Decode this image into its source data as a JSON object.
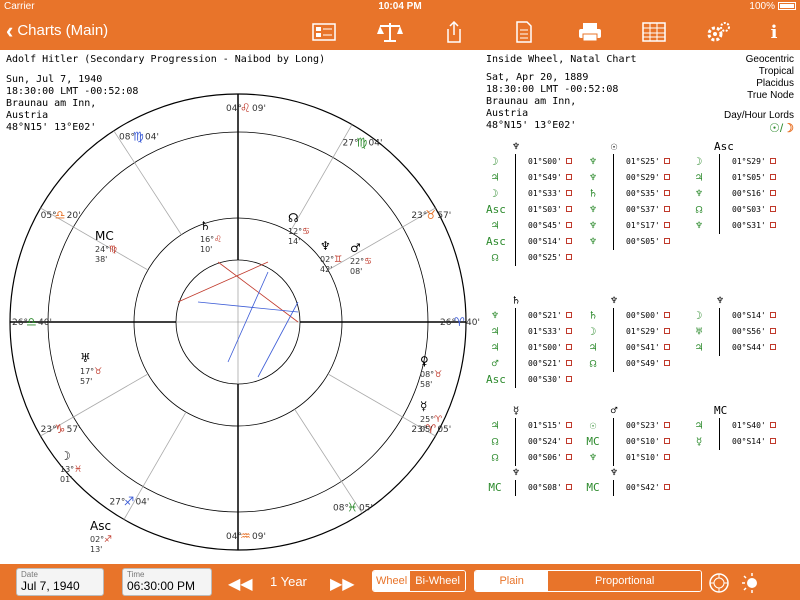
{
  "status": {
    "carrier": "Carrier",
    "time": "10:04 PM",
    "battery": "100%"
  },
  "nav": {
    "back_label": "Charts (Main)"
  },
  "left_chart": {
    "title": "Adolf Hitler (Secondary Progression - Naibod by Long)",
    "date": "Sun, Jul 7, 1940",
    "time": "18:30:00 LMT -00:52:08",
    "city": "Braunau am Inn,",
    "country": "Austria",
    "coords": "48°N15' 13°E02'"
  },
  "right_chart": {
    "title": "Inside Wheel, Natal Chart",
    "date": "Sat, Apr 20, 1889",
    "time": "18:30:00 LMT -00:52:08",
    "city": "Braunau am Inn,",
    "country": "Austria",
    "coords": "48°N15' 13°E02'"
  },
  "settings": {
    "zodiac_ref": "Geocentric",
    "zodiac": "Tropical",
    "houses": "Placidus",
    "node": "True Node"
  },
  "day_hour": {
    "label": "Day/Hour Lords"
  },
  "house_cusps": [
    {
      "deg": "04°",
      "min": "09'",
      "sign": "♌"
    },
    {
      "deg": "27°",
      "min": "04'",
      "sign": "♍"
    },
    {
      "deg": "23°",
      "min": "57'",
      "sign": "♉"
    },
    {
      "deg": "26°",
      "min": "40'",
      "sign": "♈"
    },
    {
      "deg": "23°",
      "min": "05'",
      "sign": "♈"
    },
    {
      "deg": "08°",
      "min": "05'",
      "sign": "♓"
    },
    {
      "deg": "04°",
      "min": "09'",
      "sign": "♒"
    },
    {
      "deg": "27°",
      "min": "04'",
      "sign": "♐"
    },
    {
      "deg": "23°",
      "min": "57'",
      "sign": "♑"
    },
    {
      "deg": "26°",
      "min": "40'",
      "sign": "♎"
    },
    {
      "deg": "05°",
      "min": "20'",
      "sign": "♎"
    },
    {
      "deg": "08°",
      "min": "04'",
      "sign": "♍"
    }
  ],
  "outer_planets": [
    {
      "glyph": "♄",
      "deg": "16°",
      "sign": "♌",
      "min": "10'"
    },
    {
      "glyph": "☊",
      "deg": "12°",
      "sign": "♋",
      "min": "14'"
    },
    {
      "glyph": "♂",
      "deg": "22°",
      "sign": "♋",
      "min": "08'"
    },
    {
      "glyph": "♆",
      "deg": "02°",
      "sign": "♊",
      "min": "42'"
    },
    {
      "glyph": "MC",
      "deg": "24°",
      "sign": "♍",
      "min": "38'"
    },
    {
      "glyph": "♅",
      "deg": "17°",
      "sign": "♉",
      "min": "57'"
    },
    {
      "glyph": "☽",
      "deg": "13°",
      "sign": "♓",
      "min": "01'"
    },
    {
      "glyph": "Asc",
      "deg": "02°",
      "sign": "♐",
      "min": "13'"
    },
    {
      "glyph": "☿",
      "deg": "25°",
      "sign": "♈",
      "min": "05'"
    },
    {
      "glyph": "♀",
      "deg": "08°",
      "sign": "♉",
      "min": "58'"
    }
  ],
  "aspect_blocks": [
    {
      "header": "♆",
      "rows": [
        {
          "g": "☽",
          "v": "01°S00'"
        },
        {
          "g": "♃",
          "v": "01°S49'"
        },
        {
          "g": "☽",
          "v": "01°S33'"
        },
        {
          "g": "Asc",
          "v": "01°S03'"
        },
        {
          "g": "♃",
          "v": "00°S45'"
        },
        {
          "g": "Asc",
          "v": "00°S14'"
        },
        {
          "g": "☊",
          "v": "00°S25'"
        }
      ]
    },
    {
      "header": "☉",
      "rows": [
        {
          "g": "♆",
          "v": "01°S25'"
        },
        {
          "g": "♆",
          "v": "00°S29'"
        },
        {
          "g": "♄",
          "v": "00°S35'"
        },
        {
          "g": "♆",
          "v": "00°S37'"
        },
        {
          "g": "♆",
          "v": "01°S17'"
        },
        {
          "g": "♆",
          "v": "00°S05'"
        }
      ]
    },
    {
      "header": "Asc",
      "rows": [
        {
          "g": "☽",
          "v": "01°S29'"
        },
        {
          "g": "♃",
          "v": "01°S05'"
        },
        {
          "g": "♆",
          "v": "00°S16'"
        },
        {
          "g": "☊",
          "v": "00°S03'"
        },
        {
          "g": "♆",
          "v": "00°S31'"
        }
      ]
    },
    {
      "header": "♄",
      "rows": [
        {
          "g": "♆",
          "v": "00°S21'"
        },
        {
          "g": "♃",
          "v": "01°S33'"
        },
        {
          "g": "♃",
          "v": "01°S00'"
        },
        {
          "g": "♂",
          "v": "00°S21'"
        },
        {
          "g": "Asc",
          "v": "00°S30'"
        }
      ]
    },
    {
      "header": "♆",
      "rows": [
        {
          "g": "♄",
          "v": "00°S00'"
        },
        {
          "g": "☽",
          "v": "01°S29'"
        },
        {
          "g": "♃",
          "v": "00°S41'"
        },
        {
          "g": "☊",
          "v": "00°S49'"
        }
      ]
    },
    {
      "header": "♆",
      "rows": [
        {
          "g": "☽",
          "v": "00°S14'"
        },
        {
          "g": "♅",
          "v": "00°S56'"
        },
        {
          "g": "♃",
          "v": "00°S44'"
        }
      ]
    },
    {
      "header": "☿",
      "rows": [
        {
          "g": "♃",
          "v": "01°S15'"
        },
        {
          "g": "☊",
          "v": "00°S24'"
        },
        {
          "g": "☊",
          "v": "00°S06'"
        }
      ]
    },
    {
      "header": "♂",
      "rows": [
        {
          "g": "☉",
          "v": "00°S23'"
        },
        {
          "g": "MC",
          "v": "00°S10'"
        },
        {
          "g": "♆",
          "v": "01°S10'"
        }
      ]
    },
    {
      "header": "MC",
      "rows": [
        {
          "g": "♃",
          "v": "01°S40'"
        },
        {
          "g": "☿",
          "v": "00°S14'"
        }
      ]
    },
    {
      "header": "♆",
      "rows": [
        {
          "g": "MC",
          "v": "00°S08'"
        }
      ]
    },
    {
      "header": "♆",
      "rows": [
        {
          "g": "MC",
          "v": "00°S42'"
        }
      ]
    }
  ],
  "bottom": {
    "date_label": "Date",
    "date_value": "Jul 7, 1940",
    "time_label": "Time",
    "time_value": "06:30:00 PM",
    "interval": "1 Year",
    "wheel": "Wheel",
    "biwheel": "Bi-Wheel",
    "plain": "Plain",
    "proportional": "Proportional"
  },
  "colors": {
    "accent": "#e8742a",
    "fire": "#c0392b",
    "earth": "#2c8a2c",
    "air": "#e8742a",
    "water": "#3b5bd6"
  }
}
